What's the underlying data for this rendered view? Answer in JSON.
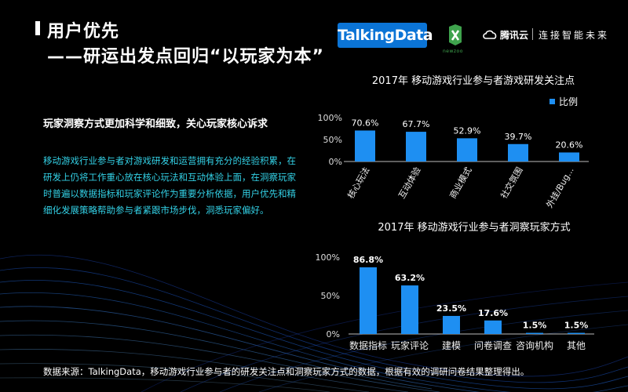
{
  "header": {
    "title_line1": "用户优先",
    "title_line2": "——研运出发点回归“以玩家为本”"
  },
  "logos": {
    "talkingdata": "TalkingData",
    "newzoo": "newzoo",
    "tencent_cloud": "腾讯云",
    "slogan": "连接智能未来"
  },
  "left": {
    "subheading": "玩家洞察方式更加科学和细致，关心玩家核心诉求",
    "paragraph": "移动游戏行业参与者对游戏研发和运营拥有充分的经验积累，在研发上仍将工作重心放在核心玩法和互动体验上面，在洞察玩家时普遍以数据指标和玩家评论作为重要分析依据，用户优先和精细化发展策略帮助参与者紧跟市场步伐，洞悉玩家偏好。"
  },
  "colors": {
    "bar": "#1e8ff2",
    "accent_text": "#33d1e6"
  },
  "footer": {
    "source": "数据来源：TalkingData，移动游戏行业参与者的研发关注点和洞察玩家方式的数据，根据有效的调研问卷结果整理得出。"
  },
  "chart_data": [
    {
      "type": "bar",
      "title": "2017年 移动游戏行业参与者游戏研发关注点",
      "categories": [
        "核心玩法",
        "互动体验",
        "商业模式",
        "社交氛围",
        "外挂/Bug..."
      ],
      "series": [
        {
          "name": "比例",
          "values": [
            70.6,
            67.7,
            52.9,
            39.7,
            20.6
          ]
        }
      ],
      "data_labels": [
        "70.6%",
        "67.7%",
        "52.9%",
        "39.7%",
        "20.6%"
      ],
      "yticks": [
        "0%",
        "50%",
        "100%"
      ],
      "ylim": [
        0,
        100
      ],
      "legend": "top-right"
    },
    {
      "type": "bar",
      "title": "2017年 移动游戏行业参与者洞察玩家方式",
      "categories": [
        "数据指标",
        "玩家评论",
        "建模",
        "问卷调查",
        "咨询机构",
        "其他"
      ],
      "series": [
        {
          "values": [
            86.8,
            63.2,
            23.5,
            17.6,
            1.5,
            1.5
          ]
        }
      ],
      "data_labels": [
        "86.8%",
        "63.2%",
        "23.5%",
        "17.6%",
        "1.5%",
        "1.5%"
      ],
      "yticks": [
        "0%",
        "50%",
        "100%"
      ],
      "ylim": [
        0,
        100
      ]
    }
  ]
}
